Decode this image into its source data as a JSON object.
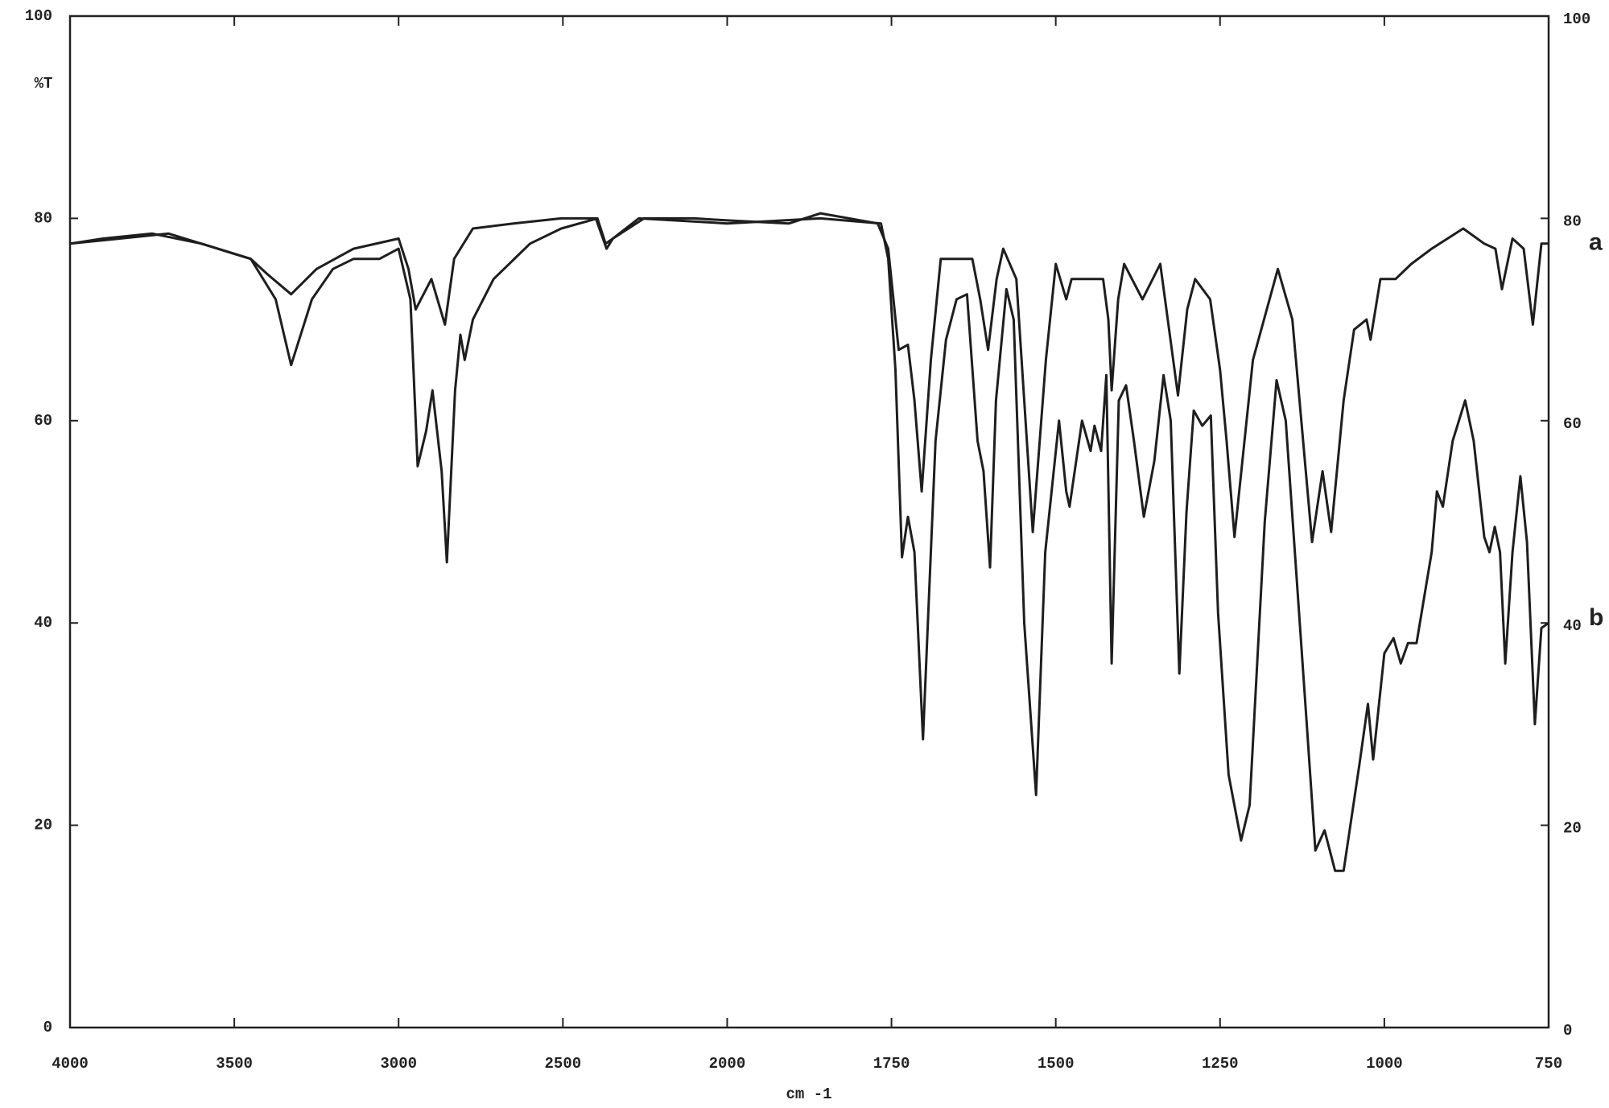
{
  "chart_data": {
    "type": "line",
    "ylabel": "%T",
    "xlabel": "cm -1",
    "xlim": [
      4000,
      750
    ],
    "xticks": [
      4000,
      3500,
      3000,
      2500,
      2000,
      1750,
      1500,
      1250,
      1000,
      750
    ],
    "ylim": [
      0,
      100
    ],
    "yticks": [
      0,
      20,
      40,
      60,
      80,
      100
    ],
    "y2lim": [
      0,
      100
    ],
    "y2ticks": [
      0,
      20,
      40,
      60,
      80,
      100
    ],
    "grid": false,
    "series": [
      {
        "name": "a",
        "color": "#1e1e1e",
        "x": [
          4000,
          3900,
          3750,
          3600,
          3500,
          3450,
          3400,
          3327,
          3250,
          3137,
          3000,
          2970,
          2948,
          2900,
          2859,
          2831,
          2774,
          2650,
          2505,
          2400,
          2367,
          2348,
          2253,
          2100,
          2000,
          1906,
          1858,
          1771,
          1755,
          1739,
          1725,
          1715,
          1704,
          1690,
          1675,
          1627,
          1615,
          1603,
          1590,
          1580,
          1560,
          1535,
          1515,
          1500,
          1484,
          1476,
          1428,
          1420,
          1415,
          1405,
          1396,
          1368,
          1341,
          1314,
          1300,
          1288,
          1265,
          1250,
          1240,
          1228,
          1200,
          1162,
          1140,
          1110,
          1094,
          1081,
          1062,
          1046,
          1027,
          1021,
          1006,
          983,
          959,
          928,
          880,
          848,
          831,
          821,
          805,
          788,
          774,
          761,
          750
        ],
        "values": [
          77.5,
          78,
          78.5,
          77.5,
          76.5,
          76,
          74.5,
          72.5,
          75,
          77,
          78,
          75,
          71,
          74,
          69.5,
          76,
          79,
          79.5,
          80,
          80,
          77,
          78,
          80,
          80,
          79.8,
          79.5,
          80.5,
          79.5,
          77,
          67,
          67.5,
          62,
          53,
          66,
          76,
          76,
          72,
          67,
          74,
          77,
          74,
          49,
          66,
          75.5,
          72,
          74,
          74,
          70,
          63,
          72,
          75.5,
          72,
          75.5,
          62.5,
          71,
          74,
          72,
          65,
          58,
          48.5,
          66,
          75,
          70,
          48,
          55,
          49,
          62,
          69,
          70,
          68,
          74,
          74,
          75.5,
          77,
          79,
          77.5,
          77,
          73,
          78,
          77,
          69.5,
          77.5,
          77.5
        ]
      },
      {
        "name": "b",
        "color": "#1e1e1e",
        "x": [
          4000,
          3700,
          3500,
          3450,
          3374,
          3327,
          3264,
          3200,
          3137,
          3058,
          3000,
          2964,
          2942,
          2916,
          2897,
          2869,
          2853,
          2828,
          2812,
          2799,
          2774,
          2711,
          2600,
          2505,
          2395,
          2370,
          2348,
          2269,
          2000,
          1858,
          1766,
          1755,
          1744,
          1734,
          1725,
          1715,
          1702,
          1683,
          1667,
          1651,
          1635,
          1619,
          1610,
          1600,
          1591,
          1575,
          1564,
          1548,
          1530,
          1516,
          1495,
          1484,
          1479,
          1460,
          1447,
          1441,
          1431,
          1423,
          1415,
          1404,
          1393,
          1381,
          1366,
          1350,
          1336,
          1325,
          1312,
          1301,
          1290,
          1277,
          1264,
          1253,
          1237,
          1218,
          1205,
          1182,
          1164,
          1150,
          1118,
          1105,
          1091,
          1075,
          1062,
          1038,
          1025,
          1017,
          1000,
          986,
          975,
          964,
          951,
          928,
          920,
          911,
          896,
          877,
          864,
          848,
          840,
          832,
          824,
          816,
          805,
          793,
          783,
          771,
          761,
          750
        ],
        "values": [
          77.5,
          78.5,
          76.5,
          76,
          72,
          65.5,
          72,
          75,
          76,
          76,
          77,
          72,
          55.5,
          59,
          63,
          55,
          46,
          63,
          68.5,
          66,
          70,
          74,
          77.5,
          79,
          80,
          77.5,
          78,
          80,
          79.5,
          80,
          79.5,
          76,
          65,
          46.5,
          50.5,
          47,
          28.5,
          58,
          68,
          72,
          72.5,
          58,
          55,
          45.5,
          62,
          73,
          70,
          40,
          23,
          47,
          60,
          53,
          51.5,
          60,
          57,
          59.5,
          57,
          64.5,
          36,
          62,
          63.5,
          58,
          50.5,
          56,
          64.5,
          60,
          35,
          51,
          61,
          59.5,
          60.5,
          41,
          25,
          18.5,
          22,
          50,
          64,
          60,
          30,
          17.5,
          19.5,
          15.5,
          15.5,
          26,
          32,
          26.5,
          37,
          38.5,
          36,
          38,
          38,
          47,
          53,
          51.5,
          58,
          62,
          58,
          48.5,
          47,
          49.5,
          47,
          36,
          47,
          54.5,
          48,
          30,
          39.5,
          40
        ]
      }
    ]
  }
}
